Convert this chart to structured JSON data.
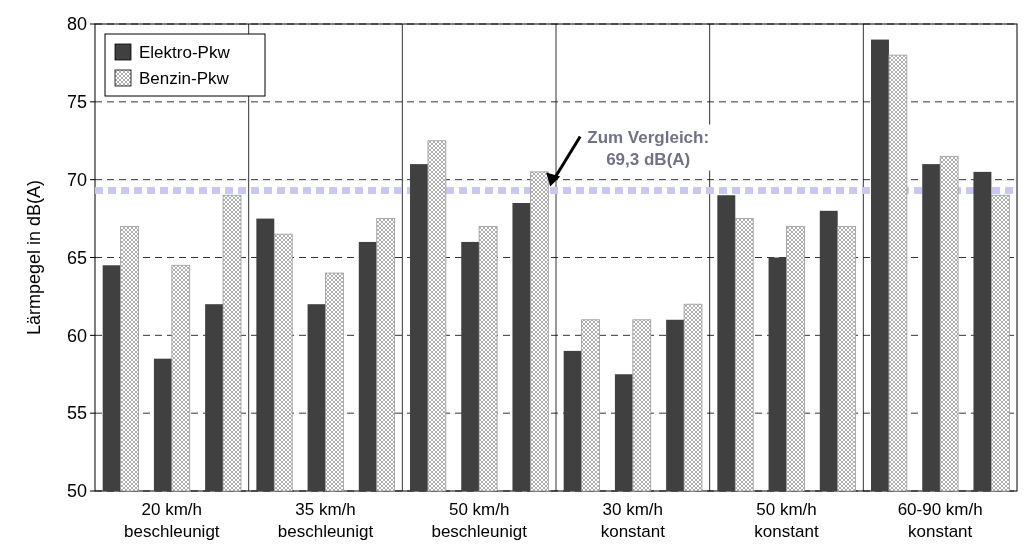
{
  "chart_data": {
    "type": "bar",
    "ylabel": "Lärmpegel in dB(A)",
    "categories": [
      null,
      "20 km/h\nbeschleunigt",
      null,
      null,
      "35 km/h\nbeschleunigt",
      null,
      null,
      "50 km/h\nbeschleunigt",
      null,
      null,
      "30 km/h\nkonstant",
      null,
      null,
      "50 km/h\nkonstant",
      null,
      null,
      "60-90 km/h\nkonstant",
      null
    ],
    "series": [
      {
        "name": "Elektro-Pkw",
        "color": "#404040",
        "values": [
          64.5,
          58.5,
          62,
          67.5,
          62,
          66,
          71,
          66,
          68.5,
          59,
          57.5,
          61,
          69,
          65,
          68,
          79,
          71,
          70.5
        ]
      },
      {
        "name": "Benzin-Pkw",
        "color": "#9a9a9a",
        "values": [
          67,
          64.5,
          69,
          66.5,
          64,
          67.5,
          72.5,
          67,
          70.5,
          61,
          61,
          62,
          67.5,
          67,
          67,
          78,
          71.5,
          69
        ]
      }
    ],
    "ylim": [
      50,
      80
    ],
    "yticks": [
      50,
      55,
      60,
      65,
      70,
      75,
      80
    ],
    "grid": "y",
    "legend": "top left",
    "ref_lines": [
      {
        "axis": "y",
        "value": 69.3,
        "label": "Zum Vergleich:\n69,3 dB(A)",
        "color": "#c8c8f0",
        "line_style": "dashed"
      }
    ]
  }
}
